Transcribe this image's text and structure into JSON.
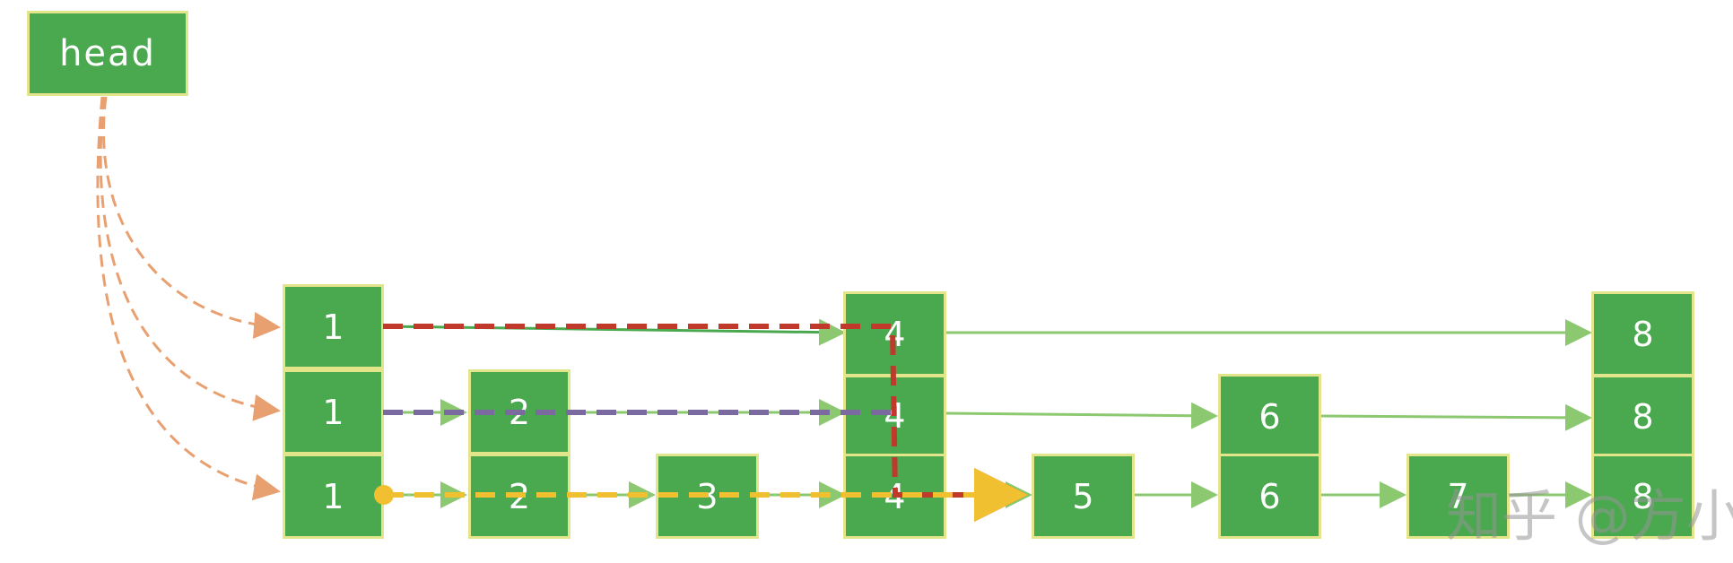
{
  "head_label": "head",
  "levels": [
    {
      "nodes": [
        "1",
        "4",
        "8"
      ]
    },
    {
      "nodes": [
        "1",
        "2",
        "4",
        "6",
        "8"
      ]
    },
    {
      "nodes": [
        "1",
        "2",
        "3",
        "4",
        "5",
        "6",
        "7",
        "8"
      ]
    }
  ],
  "search_paths": [
    {
      "color": "#c0392b",
      "description_level": 0
    },
    {
      "color": "#7b6aa0",
      "description_level": 1
    },
    {
      "color": "#f0c030",
      "description_level": 2
    }
  ],
  "colors": {
    "node_fill": "#4aa84f",
    "node_border": "#e3e58a",
    "link": "#8cc870",
    "head_pointer": "#e8a070"
  },
  "watermark": "知乎 @方小"
}
